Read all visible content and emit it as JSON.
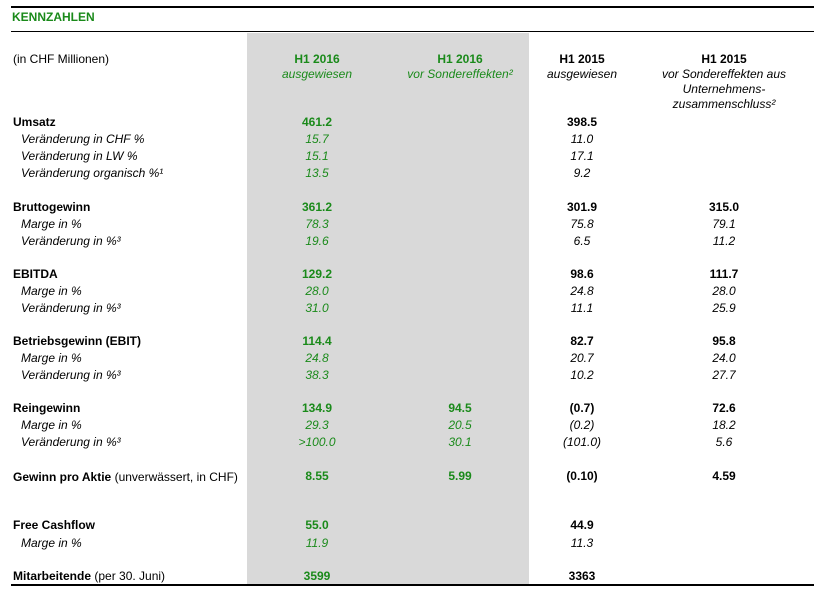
{
  "title": "KENNZAHLEN",
  "units": "(in CHF Millionen)",
  "columns": [
    {
      "line1": "H1 2016",
      "line2": "ausgewiesen"
    },
    {
      "line1": "H1 2016",
      "line2": "vor Sondereffekten²"
    },
    {
      "line1": "H1 2015",
      "line2": "ausgewiesen"
    },
    {
      "line1": "H1 2015",
      "line2a": "vor Sondereffekten aus",
      "line2b": "Unternehmens-",
      "line2c": "zusammenschluss²"
    }
  ],
  "rows": {
    "umsatz": {
      "label": "Umsatz",
      "c1": "461.2",
      "c2": "",
      "c3": "398.5",
      "c4": ""
    },
    "umsatz_chf": {
      "label": "Veränderung in CHF %",
      "c1": "15.7",
      "c2": "",
      "c3": "11.0",
      "c4": ""
    },
    "umsatz_lw": {
      "label": "Veränderung in LW %",
      "c1": "15.1",
      "c2": "",
      "c3": "17.1",
      "c4": ""
    },
    "umsatz_org": {
      "label": "Veränderung organisch %¹",
      "c1": "13.5",
      "c2": "",
      "c3": "9.2",
      "c4": ""
    },
    "brutto": {
      "label": "Bruttogewinn",
      "c1": "361.2",
      "c2": "",
      "c3": "301.9",
      "c4": "315.0"
    },
    "brutto_marge": {
      "label": "Marge in %",
      "c1": "78.3",
      "c2": "",
      "c3": "75.8",
      "c4": "79.1"
    },
    "brutto_ver": {
      "label": "Veränderung in %³",
      "c1": "19.6",
      "c2": "",
      "c3": "6.5",
      "c4": "11.2"
    },
    "ebitda": {
      "label": "EBITDA",
      "c1": "129.2",
      "c2": "",
      "c3": "98.6",
      "c4": "111.7"
    },
    "ebitda_marge": {
      "label": "Marge in %",
      "c1": "28.0",
      "c2": "",
      "c3": "24.8",
      "c4": "28.0"
    },
    "ebitda_ver": {
      "label": "Veränderung in %³",
      "c1": "31.0",
      "c2": "",
      "c3": "11.1",
      "c4": "25.9"
    },
    "ebit": {
      "label": "Betriebsgewinn (EBIT)",
      "c1": "114.4",
      "c2": "",
      "c3": "82.7",
      "c4": "95.8"
    },
    "ebit_marge": {
      "label": "Marge in %",
      "c1": "24.8",
      "c2": "",
      "c3": "20.7",
      "c4": "24.0"
    },
    "ebit_ver": {
      "label": "Veränderung in %³",
      "c1": "38.3",
      "c2": "",
      "c3": "10.2",
      "c4": "27.7"
    },
    "rein": {
      "label": "Reingewinn",
      "c1": "134.9",
      "c2": "94.5",
      "c3": "(0.7)",
      "c4": "72.6"
    },
    "rein_marge": {
      "label": "Marge in %",
      "c1": "29.3",
      "c2": "20.5",
      "c3": "(0.2)",
      "c4": "18.2"
    },
    "rein_ver": {
      "label": "Veränderung in %³",
      "c1": ">100.0",
      "c2": "30.1",
      "c3": "(101.0)",
      "c4": "5.6"
    },
    "gpa": {
      "label_bold": "Gewinn pro Aktie",
      "label_rest": " (unverwässert, in CHF)",
      "c1": "8.55",
      "c2": "5.99",
      "c3": "(0.10)",
      "c4": "4.59"
    },
    "fcf": {
      "label": "Free Cashflow",
      "c1": "55.0",
      "c2": "",
      "c3": "44.9",
      "c4": ""
    },
    "fcf_marge": {
      "label": "Marge in %",
      "c1": "11.9",
      "c2": "",
      "c3": "11.3",
      "c4": ""
    },
    "ma": {
      "label_bold": "Mitarbeitende",
      "label_rest": " (per 30. Juni)",
      "c1": "3599",
      "c2": "",
      "c3": "3363",
      "c4": ""
    }
  }
}
